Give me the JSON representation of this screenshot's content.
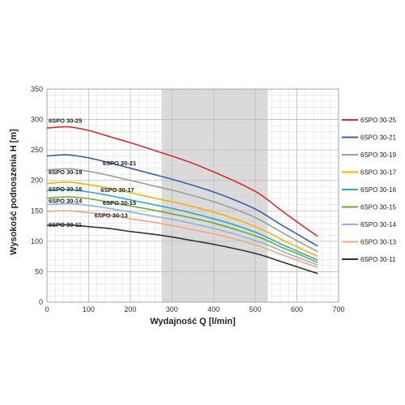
{
  "chart_data": {
    "type": "line",
    "xlabel": "Wydajność Q [l/min]",
    "ylabel": "Wysokość podnoszenia H [m]",
    "xlim": [
      0,
      700
    ],
    "ylim": [
      0,
      350
    ],
    "xticks": [
      0,
      100,
      200,
      300,
      400,
      500,
      600,
      700
    ],
    "yticks": [
      0,
      50,
      100,
      150,
      200,
      250,
      300,
      350
    ],
    "x_minor_step": 20,
    "y_minor_step": 10,
    "shaded_range": [
      275,
      530
    ],
    "shaded_color": "#d9d9d9",
    "grid": true,
    "legend_position": "right",
    "x": [
      0,
      50,
      100,
      150,
      200,
      250,
      300,
      350,
      400,
      450,
      500,
      530,
      560,
      600,
      650
    ],
    "series": [
      {
        "name": "6SPO 30-25",
        "color": "#d32f2f",
        "label_at": [
          0,
          295
        ],
        "values": [
          286,
          288,
          282,
          272,
          262,
          251,
          240,
          228,
          214,
          199,
          182,
          168,
          152,
          132,
          108
        ]
      },
      {
        "name": "6SPO 30-21",
        "color": "#3c5fa6",
        "label_at": [
          130,
          225
        ],
        "values": [
          240,
          242,
          237,
          229,
          220,
          211,
          202,
          192,
          181,
          168,
          153,
          141,
          128,
          112,
          92
        ]
      },
      {
        "name": "6SPO 30-19",
        "color": "#9e9e9e",
        "label_at": [
          0,
          210
        ],
        "values": [
          217,
          219,
          215,
          208,
          200,
          192,
          184,
          175,
          165,
          153,
          139,
          128,
          116,
          101,
          83
        ]
      },
      {
        "name": "6SPO 30-17",
        "color": "#f0b400",
        "label_at": [
          125,
          181
        ],
        "values": [
          195,
          197,
          193,
          187,
          180,
          172,
          165,
          157,
          148,
          137,
          124,
          115,
          104,
          91,
          75
        ]
      },
      {
        "name": "6SPO 30-16",
        "color": "#2fa7c9",
        "label_at": [
          0,
          182
        ],
        "values": [
          183,
          185,
          181,
          175,
          168,
          161,
          154,
          146,
          137,
          127,
          115,
          106,
          96,
          84,
          69
        ]
      },
      {
        "name": "6SPO 30-15",
        "color": "#6aaa3a",
        "label_at": [
          130,
          160
        ],
        "values": [
          171,
          173,
          170,
          164,
          158,
          152,
          145,
          138,
          130,
          120,
          109,
          101,
          91,
          80,
          65
        ]
      },
      {
        "name": "6SPO 30-14",
        "color": "#8fb2de",
        "label_at": [
          0,
          163
        ],
        "values": [
          160,
          162,
          159,
          154,
          148,
          142,
          136,
          129,
          121,
          112,
          101,
          94,
          85,
          74,
          61
        ]
      },
      {
        "name": "6SPO 30-13",
        "color": "#f4a582",
        "label_at": [
          110,
          139
        ],
        "values": [
          149,
          150,
          147,
          143,
          137,
          132,
          126,
          119,
          112,
          104,
          94,
          87,
          79,
          69,
          57
        ]
      },
      {
        "name": "6SPO 30-11",
        "color": "#333333",
        "label_at": [
          0,
          124
        ],
        "values": [
          126,
          127,
          124,
          121,
          116,
          112,
          107,
          101,
          95,
          88,
          80,
          74,
          67,
          58,
          47
        ]
      }
    ]
  }
}
